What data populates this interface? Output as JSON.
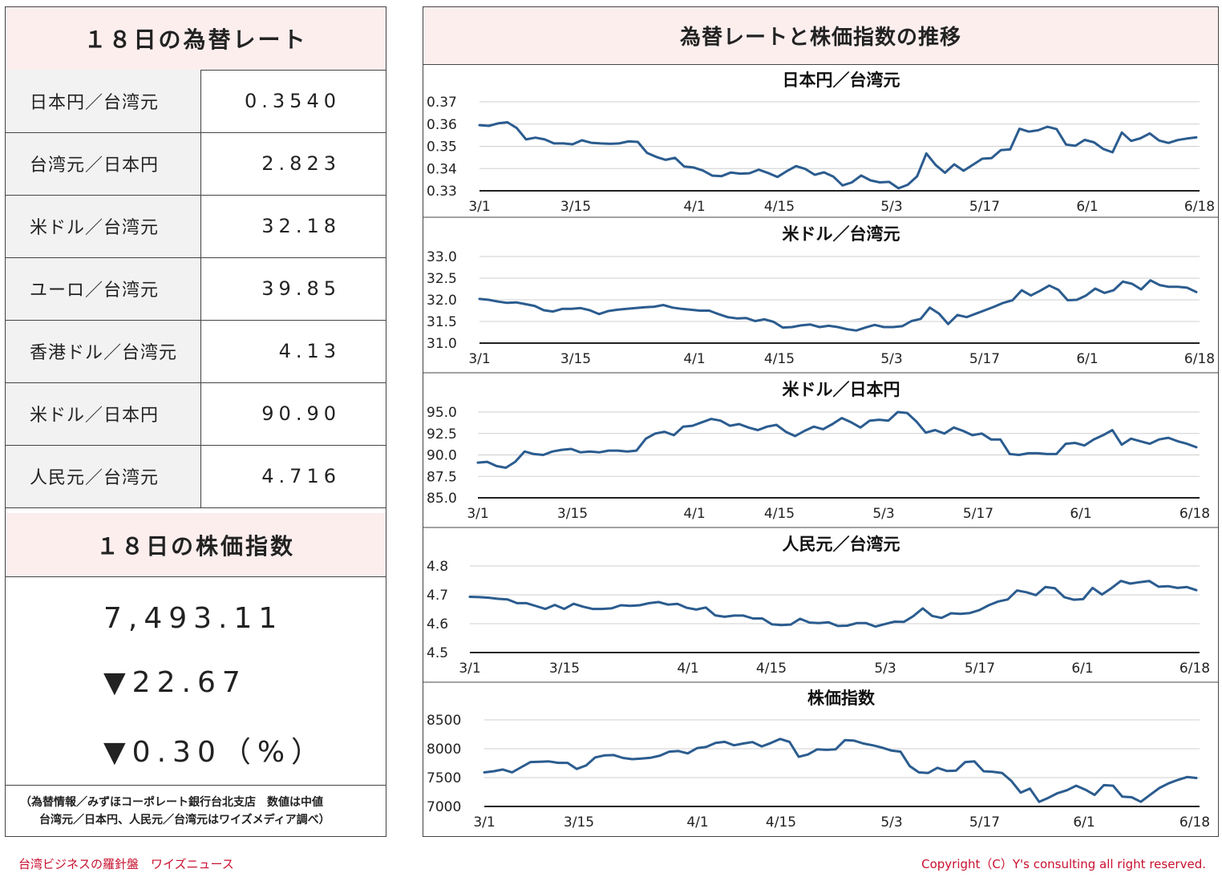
{
  "left": {
    "fx_title": "１８日の為替レート",
    "rates": [
      {
        "label": "日本円／台湾元",
        "value": "0.3540"
      },
      {
        "label": "台湾元／日本円",
        "value": "2.823"
      },
      {
        "label": "米ドル／台湾元",
        "value": "32.18"
      },
      {
        "label": "ユーロ／台湾元",
        "value": "39.85"
      },
      {
        "label": "香港ドル／台湾元",
        "value": "4.13"
      },
      {
        "label": "米ドル／日本円",
        "value": "90.90"
      },
      {
        "label": "人民元／台湾元",
        "value": "4.716"
      }
    ],
    "stock_title": "１８日の株価指数",
    "stock_value": "7,493.11",
    "stock_change": "▼22.67",
    "stock_pct": "▼0.30（%）",
    "source_line1": "（為替情報／みずほコーポレート銀行台北支店　数値は中値",
    "source_line2": "台湾元／日本円、人民元／台湾元はワイズメディア調べ）"
  },
  "right": {
    "title": "為替レートと株価指数の推移"
  },
  "footer": {
    "left": "台湾ビジネスの羅針盤　ワイズニュース",
    "right": "Copyright（C）Y's consulting all right reserved."
  },
  "colors": {
    "line": "#2b5c8f",
    "header_bg": "#fdeeee",
    "footer_text": "#c8102e"
  },
  "chart_data": [
    {
      "type": "line",
      "title": "日本円／台湾元",
      "x_ticks": [
        "3/1",
        "3/15",
        "4/1",
        "4/15",
        "5/3",
        "5/17",
        "6/1",
        "6/18"
      ],
      "y_ticks": [
        "0.37",
        "0.36",
        "0.35",
        "0.34",
        "0.33"
      ],
      "ylim": [
        0.33,
        0.37
      ],
      "grid": true,
      "series": [
        {
          "values": [
            0.3595,
            0.3592,
            0.3603,
            0.3608,
            0.3582,
            0.3531,
            0.3539,
            0.3531,
            0.3513,
            0.3513,
            0.3509,
            0.3527,
            0.3516,
            0.3513,
            0.3511,
            0.3513,
            0.3522,
            0.352,
            0.347,
            0.3452,
            0.3439,
            0.3448,
            0.3409,
            0.3405,
            0.3391,
            0.3368,
            0.3366,
            0.3382,
            0.3377,
            0.3379,
            0.3395,
            0.338,
            0.3362,
            0.3388,
            0.3411,
            0.3398,
            0.3372,
            0.3383,
            0.3364,
            0.3324,
            0.3338,
            0.3369,
            0.3347,
            0.3338,
            0.334,
            0.3311,
            0.3327,
            0.3365,
            0.3468,
            0.3416,
            0.3381,
            0.3419,
            0.339,
            0.3417,
            0.3444,
            0.3447,
            0.3483,
            0.3486,
            0.3579,
            0.3566,
            0.3572,
            0.3588,
            0.3577,
            0.3508,
            0.3502,
            0.3529,
            0.3518,
            0.3488,
            0.3473,
            0.3562,
            0.3524,
            0.3536,
            0.3558,
            0.3526,
            0.3515,
            0.3528,
            0.3535,
            0.354
          ]
        }
      ]
    },
    {
      "type": "line",
      "title": "米ドル／台湾元",
      "x_ticks": [
        "3/1",
        "3/15",
        "4/1",
        "4/15",
        "5/3",
        "5/17",
        "6/1",
        "6/18"
      ],
      "y_ticks": [
        "33.0",
        "32.5",
        "32.0",
        "31.5",
        "31.0"
      ],
      "ylim": [
        31.0,
        33.0
      ],
      "grid": true,
      "series": [
        {
          "values": [
            32.02,
            32.0,
            31.96,
            31.93,
            31.94,
            31.9,
            31.86,
            31.76,
            31.73,
            31.79,
            31.79,
            31.81,
            31.76,
            31.67,
            31.74,
            31.77,
            31.79,
            31.81,
            31.83,
            31.84,
            31.88,
            31.82,
            31.79,
            31.77,
            31.75,
            31.75,
            31.67,
            31.6,
            31.57,
            31.58,
            31.51,
            31.55,
            31.49,
            31.36,
            31.37,
            31.41,
            31.43,
            31.37,
            31.4,
            31.37,
            31.32,
            31.29,
            31.36,
            31.42,
            31.37,
            31.37,
            31.39,
            31.51,
            31.56,
            31.82,
            31.68,
            31.44,
            31.65,
            31.6,
            31.68,
            31.76,
            31.84,
            31.93,
            31.99,
            32.22,
            32.1,
            32.21,
            32.33,
            32.23,
            31.99,
            32.0,
            32.1,
            32.26,
            32.16,
            32.22,
            32.42,
            32.37,
            32.24,
            32.45,
            32.34,
            32.3,
            32.3,
            32.28,
            32.18
          ]
        }
      ]
    },
    {
      "type": "line",
      "title": "米ドル／日本円",
      "x_ticks": [
        "3/1",
        "3/15",
        "4/1",
        "4/15",
        "5/3",
        "5/17",
        "6/1",
        "6/18"
      ],
      "y_ticks": [
        "95.0",
        "92.5",
        "90.0",
        "87.5",
        "85.0"
      ],
      "ylim": [
        85.0,
        95.0
      ],
      "grid": true,
      "series": [
        {
          "values": [
            89.1,
            89.2,
            88.7,
            88.5,
            89.2,
            90.4,
            90.1,
            90.0,
            90.4,
            90.6,
            90.7,
            90.3,
            90.4,
            90.3,
            90.5,
            90.5,
            90.4,
            90.5,
            91.9,
            92.5,
            92.7,
            92.3,
            93.3,
            93.4,
            93.8,
            94.2,
            94.0,
            93.4,
            93.6,
            93.2,
            92.9,
            93.3,
            93.5,
            92.7,
            92.2,
            92.8,
            93.3,
            93.0,
            93.6,
            94.3,
            93.8,
            93.2,
            94.0,
            94.1,
            94.0,
            95.0,
            94.9,
            93.9,
            92.6,
            92.9,
            92.5,
            93.2,
            92.8,
            92.3,
            92.5,
            91.8,
            91.8,
            90.1,
            90.0,
            90.2,
            90.2,
            90.1,
            90.1,
            91.3,
            91.4,
            91.1,
            91.8,
            92.3,
            92.9,
            91.2,
            91.9,
            91.6,
            91.3,
            91.8,
            92.0,
            91.6,
            91.3,
            90.9
          ]
        }
      ]
    },
    {
      "type": "line",
      "title": "人民元／台湾元",
      "x_ticks": [
        "3/1",
        "3/15",
        "4/1",
        "4/15",
        "5/3",
        "5/17",
        "6/1",
        "6/18"
      ],
      "y_ticks": [
        "4.8",
        "4.7",
        "4.6",
        "4.5"
      ],
      "ylim": [
        4.5,
        4.8
      ],
      "grid": true,
      "series": [
        {
          "values": [
            4.693,
            4.692,
            4.69,
            4.686,
            4.684,
            4.671,
            4.671,
            4.661,
            4.651,
            4.665,
            4.651,
            4.669,
            4.659,
            4.651,
            4.651,
            4.653,
            4.664,
            4.662,
            4.664,
            4.671,
            4.675,
            4.666,
            4.669,
            4.655,
            4.649,
            4.656,
            4.629,
            4.624,
            4.628,
            4.628,
            4.618,
            4.618,
            4.598,
            4.595,
            4.597,
            4.617,
            4.604,
            4.602,
            4.605,
            4.592,
            4.593,
            4.602,
            4.602,
            4.59,
            4.599,
            4.607,
            4.606,
            4.626,
            4.653,
            4.627,
            4.62,
            4.636,
            4.634,
            4.637,
            4.647,
            4.664,
            4.677,
            4.684,
            4.715,
            4.709,
            4.699,
            4.727,
            4.723,
            4.692,
            4.683,
            4.685,
            4.724,
            4.701,
            4.723,
            4.748,
            4.739,
            4.744,
            4.748,
            4.728,
            4.73,
            4.724,
            4.727,
            4.716
          ]
        }
      ]
    },
    {
      "type": "line",
      "title": "株価指数",
      "x_ticks": [
        "3/1",
        "3/15",
        "4/1",
        "4/15",
        "5/3",
        "5/17",
        "6/1",
        "6/18"
      ],
      "y_ticks": [
        "8500",
        "8000",
        "7500",
        "7000"
      ],
      "ylim": [
        7000,
        8500
      ],
      "grid": true,
      "series": [
        {
          "values": [
            7590,
            7610,
            7640,
            7590,
            7680,
            7770,
            7775,
            7780,
            7755,
            7755,
            7650,
            7710,
            7850,
            7885,
            7890,
            7840,
            7820,
            7830,
            7845,
            7880,
            7950,
            7960,
            7920,
            8010,
            8030,
            8100,
            8120,
            8060,
            8090,
            8115,
            8040,
            8100,
            8170,
            8120,
            7860,
            7900,
            7990,
            7980,
            7990,
            8150,
            8140,
            8090,
            8060,
            8020,
            7970,
            7950,
            7700,
            7590,
            7580,
            7670,
            7615,
            7620,
            7770,
            7780,
            7610,
            7600,
            7580,
            7440,
            7240,
            7310,
            7080,
            7150,
            7230,
            7280,
            7360,
            7290,
            7200,
            7370,
            7360,
            7170,
            7160,
            7080,
            7200,
            7320,
            7400,
            7460,
            7510,
            7493
          ]
        }
      ]
    }
  ]
}
